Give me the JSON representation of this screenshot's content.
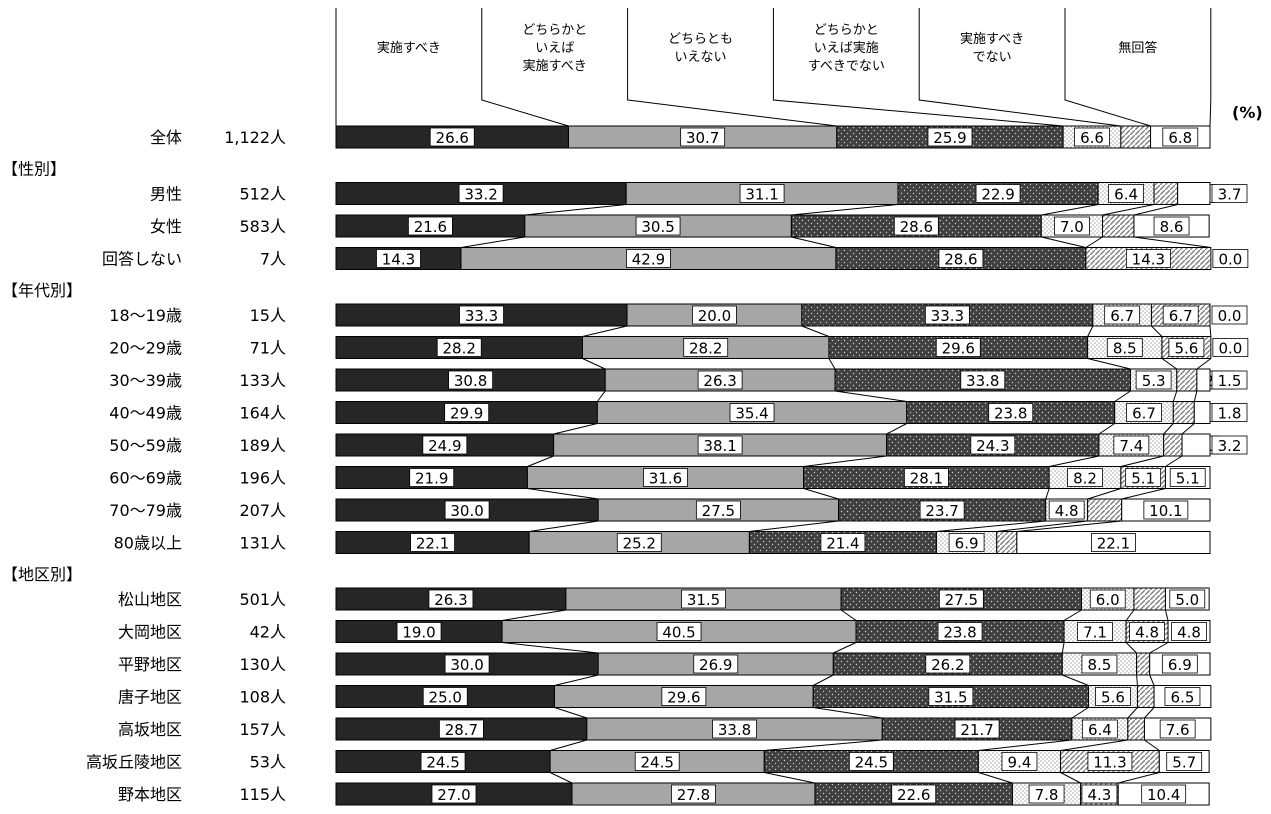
{
  "chart_data": {
    "type": "bar",
    "orientation": "horizontal",
    "stacked": true,
    "percent_scale": true,
    "unit_label": "(%)",
    "colors": {
      "s1": "#262626",
      "s2": "#a6a6a6",
      "s3": "#404040",
      "s4": "#ffffff",
      "s5": "#ffffff",
      "s6": "#ffffff",
      "outline": "#000000"
    },
    "series": [
      {
        "name": "実施すべき",
        "label_lines": [
          "実施すべき"
        ]
      },
      {
        "name": "どちらかといえば実施すべき",
        "label_lines": [
          "どちらかと",
          "いえば",
          "実施すべき"
        ]
      },
      {
        "name": "どちらともいえない",
        "label_lines": [
          "どちらとも",
          "いえない"
        ]
      },
      {
        "name": "どちらかといえば実施すべきでない",
        "label_lines": [
          "どちらかと",
          "いえば実施",
          "すべきでない"
        ]
      },
      {
        "name": "実施すべきでない",
        "label_lines": [
          "実施すべき",
          "でない"
        ]
      },
      {
        "name": "無回答",
        "label_lines": [
          "無回答"
        ]
      }
    ],
    "groups": [
      {
        "heading": "",
        "rows": [
          {
            "label": "全体",
            "n": "1,122人",
            "values": [
              26.6,
              30.7,
              25.9,
              6.6,
              3.4,
              6.8
            ],
            "value_labels": [
              "26.6",
              "30.7",
              "25.9",
              "6.6",
              "3.4",
              "6.8"
            ]
          }
        ]
      },
      {
        "heading": "【性別】",
        "rows": [
          {
            "label": "男性",
            "n": "512人",
            "values": [
              33.2,
              31.1,
              22.9,
              6.4,
              2.7,
              3.7
            ],
            "value_labels": [
              "33.2",
              "31.1",
              "22.9",
              "6.4",
              "2.7",
              "3.7"
            ]
          },
          {
            "label": "女性",
            "n": "583人",
            "values": [
              21.6,
              30.5,
              28.6,
              7.0,
              3.6,
              8.6
            ],
            "value_labels": [
              "21.6",
              "30.5",
              "28.6",
              "7.0",
              "3.6",
              "8.6"
            ]
          },
          {
            "label": "回答しない",
            "n": "7人",
            "values": [
              14.3,
              42.9,
              28.6,
              0.0,
              14.3,
              0.0
            ],
            "value_labels": [
              "14.3",
              "42.9",
              "28.6",
              "0.0",
              "14.3",
              "0.0"
            ]
          }
        ]
      },
      {
        "heading": "【年代別】",
        "rows": [
          {
            "label": "18～19歳",
            "n": "15人",
            "values": [
              33.3,
              20.0,
              33.3,
              6.7,
              6.7,
              0.0
            ],
            "value_labels": [
              "33.3",
              "20.0",
              "33.3",
              "6.7",
              "6.7",
              "0.0"
            ]
          },
          {
            "label": "20～29歳",
            "n": "71人",
            "values": [
              28.2,
              28.2,
              29.6,
              8.5,
              5.6,
              0.0
            ],
            "value_labels": [
              "28.2",
              "28.2",
              "29.6",
              "8.5",
              "5.6",
              "0.0"
            ]
          },
          {
            "label": "30～39歳",
            "n": "133人",
            "values": [
              30.8,
              26.3,
              33.8,
              5.3,
              2.3,
              1.5
            ],
            "value_labels": [
              "30.8",
              "26.3",
              "33.8",
              "5.3",
              "2.3",
              "1.5"
            ]
          },
          {
            "label": "40～49歳",
            "n": "164人",
            "values": [
              29.9,
              35.4,
              23.8,
              6.7,
              2.4,
              1.8
            ],
            "value_labels": [
              "29.9",
              "35.4",
              "23.8",
              "6.7",
              "2.4",
              "1.8"
            ]
          },
          {
            "label": "50～59歳",
            "n": "189人",
            "values": [
              24.9,
              38.1,
              24.3,
              7.4,
              2.1,
              3.2
            ],
            "value_labels": [
              "24.9",
              "38.1",
              "24.3",
              "7.4",
              "2.1",
              "3.2"
            ]
          },
          {
            "label": "60～69歳",
            "n": "196人",
            "values": [
              21.9,
              31.6,
              28.1,
              8.2,
              5.1,
              5.1
            ],
            "value_labels": [
              "21.9",
              "31.6",
              "28.1",
              "8.2",
              "5.1",
              "5.1"
            ]
          },
          {
            "label": "70～79歳",
            "n": "207人",
            "values": [
              30.0,
              27.5,
              23.7,
              4.8,
              3.9,
              10.1
            ],
            "value_labels": [
              "30.0",
              "27.5",
              "23.7",
              "4.8",
              "3.9",
              "10.1"
            ]
          },
          {
            "label": "80歳以上",
            "n": "131人",
            "values": [
              22.1,
              25.2,
              21.4,
              6.9,
              2.3,
              22.1
            ],
            "value_labels": [
              "22.1",
              "25.2",
              "21.4",
              "6.9",
              "2.3",
              "22.1"
            ]
          }
        ]
      },
      {
        "heading": "【地区別】",
        "rows": [
          {
            "label": "松山地区",
            "n": "501人",
            "values": [
              26.3,
              31.5,
              27.5,
              6.0,
              3.6,
              5.0
            ],
            "value_labels": [
              "26.3",
              "31.5",
              "27.5",
              "6.0",
              "3.6",
              "5.0"
            ]
          },
          {
            "label": "大岡地区",
            "n": "42人",
            "values": [
              19.0,
              40.5,
              23.8,
              7.1,
              4.8,
              4.8
            ],
            "value_labels": [
              "19.0",
              "40.5",
              "23.8",
              "7.1",
              "4.8",
              "4.8"
            ]
          },
          {
            "label": "平野地区",
            "n": "130人",
            "values": [
              30.0,
              26.9,
              26.2,
              8.5,
              1.5,
              6.9
            ],
            "value_labels": [
              "30.0",
              "26.9",
              "26.2",
              "8.5",
              "1.5",
              "6.9"
            ]
          },
          {
            "label": "唐子地区",
            "n": "108人",
            "values": [
              25.0,
              29.6,
              31.5,
              5.6,
              1.9,
              6.5
            ],
            "value_labels": [
              "25.0",
              "29.6",
              "31.5",
              "5.6",
              "1.9",
              "6.5"
            ]
          },
          {
            "label": "高坂地区",
            "n": "157人",
            "values": [
              28.7,
              33.8,
              21.7,
              6.4,
              1.9,
              7.6
            ],
            "value_labels": [
              "28.7",
              "33.8",
              "21.7",
              "6.4",
              "1.9",
              "7.6"
            ]
          },
          {
            "label": "高坂丘陵地区",
            "n": "53人",
            "values": [
              24.5,
              24.5,
              24.5,
              9.4,
              11.3,
              5.7
            ],
            "value_labels": [
              "24.5",
              "24.5",
              "24.5",
              "9.4",
              "11.3",
              "5.7"
            ]
          },
          {
            "label": "野本地区",
            "n": "115人",
            "values": [
              27.0,
              27.8,
              22.6,
              7.8,
              4.3,
              10.4
            ],
            "value_labels": [
              "27.0",
              "27.8",
              "22.6",
              "7.8",
              "4.3",
              "10.4"
            ]
          }
        ]
      }
    ]
  }
}
